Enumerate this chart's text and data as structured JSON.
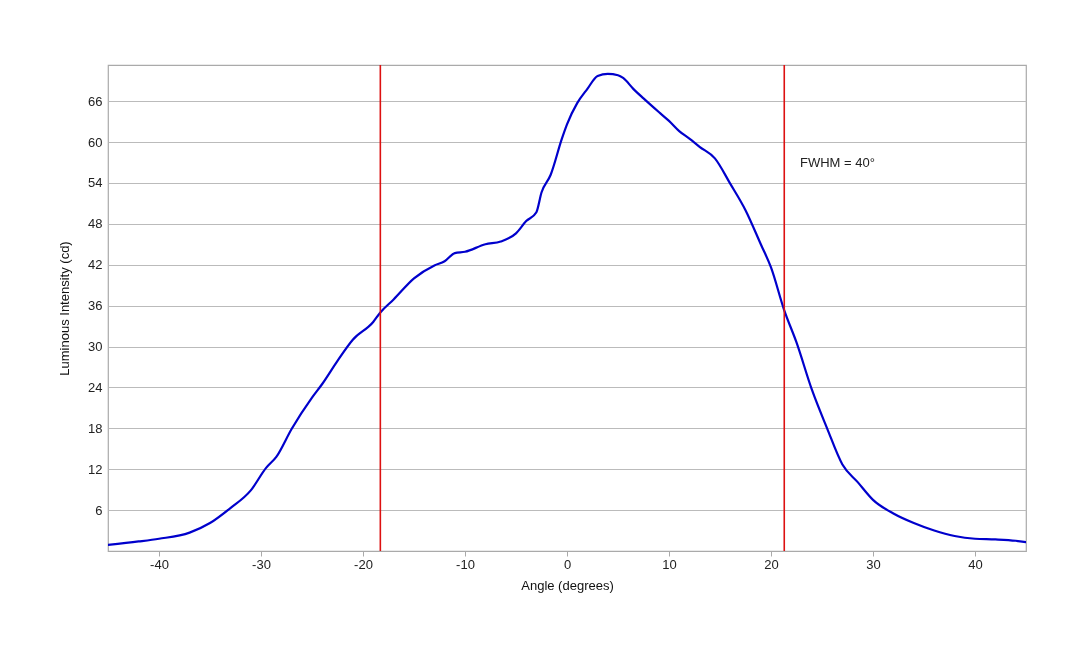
{
  "chart_data": {
    "type": "line",
    "xlabel": "Angle (degrees)",
    "ylabel": "Luminous Intensity (cd)",
    "xlim": [
      -45,
      45
    ],
    "xticks": [
      -40,
      -30,
      -20,
      -10,
      0,
      10,
      20,
      30,
      40
    ],
    "ylim": [
      0,
      71.3
    ],
    "yticks": [
      6,
      12,
      18,
      24,
      30,
      36,
      42,
      48,
      54,
      60,
      66
    ],
    "grid": "y",
    "series": [
      {
        "color": "#0000cc",
        "x": [
          -45,
          -42,
          -40,
          -37,
          -35,
          -33,
          -31,
          -29.5,
          -28.5,
          -27,
          -25,
          -24,
          -22.5,
          -21,
          -19,
          -18.3,
          -17,
          -15,
          -13,
          -12,
          -11,
          -10,
          -8,
          -6.5,
          -5,
          -4,
          -3,
          -2.5,
          -1.6,
          -0.5,
          0,
          1,
          2,
          3,
          4,
          5,
          5.5,
          6.5,
          7.5,
          9,
          10,
          11,
          12,
          13,
          14.5,
          16,
          17.5,
          19,
          20,
          21.3,
          22.5,
          24,
          25.5,
          27,
          28.5,
          30,
          32,
          34,
          36,
          38,
          40,
          42,
          44,
          45
        ],
        "values": [
          0.9,
          1.4,
          1.8,
          2.7,
          4.1,
          6.3,
          8.9,
          12.2,
          13.8,
          17.9,
          22.5,
          24.5,
          27.9,
          31.0,
          33.6,
          35.0,
          36.9,
          40.0,
          41.9,
          42.5,
          43.7,
          43.9,
          45.0,
          45.4,
          46.6,
          48.4,
          49.7,
          52.6,
          55.2,
          60.5,
          62.6,
          65.7,
          67.8,
          69.7,
          70.0,
          69.8,
          69.4,
          67.8,
          66.4,
          64.4,
          63.1,
          61.6,
          60.5,
          59.3,
          57.6,
          53.9,
          50.0,
          45.0,
          41.6,
          35.3,
          30.6,
          23.7,
          18.0,
          12.7,
          10.1,
          7.5,
          5.5,
          4.1,
          3.0,
          2.2,
          1.8,
          1.7,
          1.5,
          1.3
        ]
      }
    ],
    "ref_lines": [
      {
        "axis": "x",
        "value": -18.3,
        "color": "#dd1111"
      },
      {
        "axis": "x",
        "value": 21.3,
        "color": "#dd1111"
      }
    ],
    "annotations": [
      "FWHM = 40°"
    ]
  }
}
